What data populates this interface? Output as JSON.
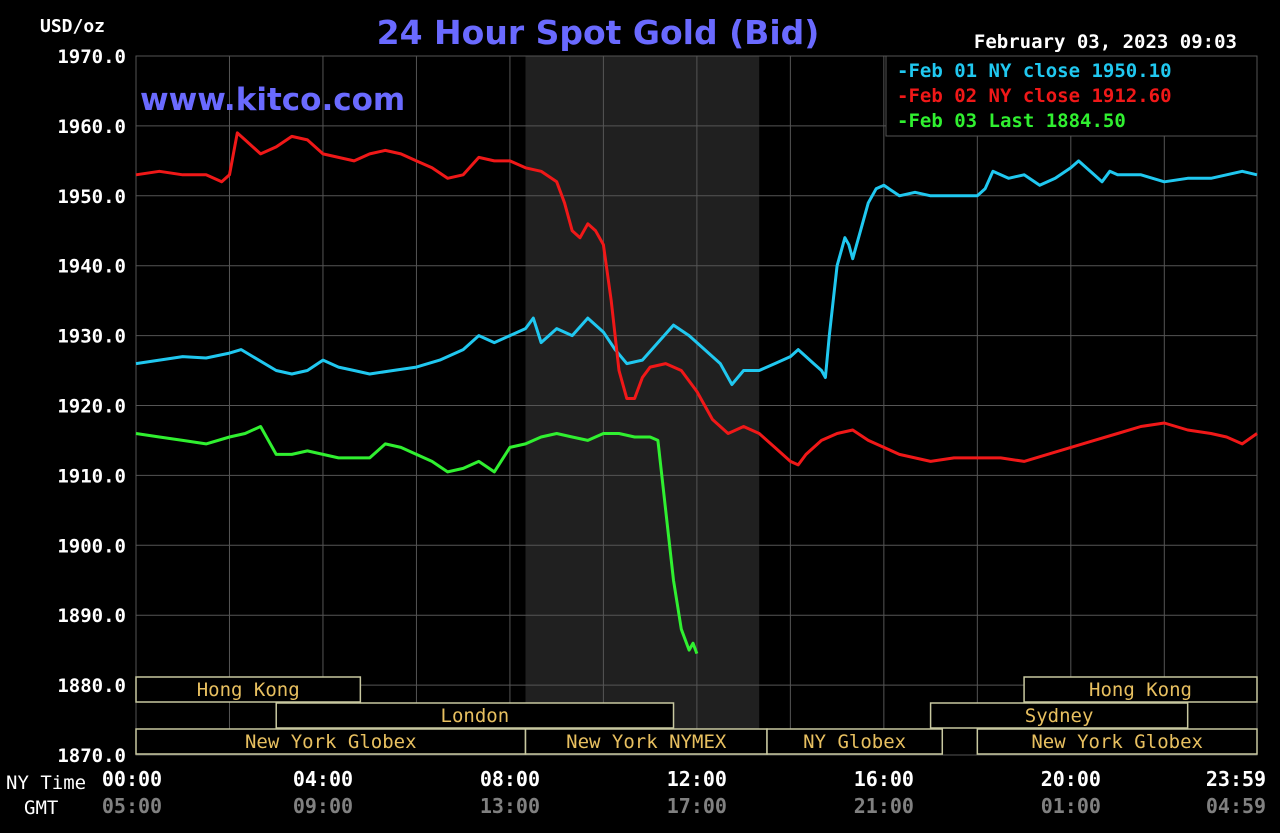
{
  "header": {
    "unit_label": "USD/oz",
    "title": "24 Hour Spot Gold (Bid)",
    "timestamp": "February 03, 2023 09:03",
    "watermark": "www.kitco.com"
  },
  "colors": {
    "background": "#000000",
    "grid": "#555555",
    "title": "#6a6aff",
    "watermark": "#6a6aff",
    "text": "#ffffff",
    "session_text": "#e8c060",
    "session_border": "#c8c8a0",
    "nymex_shade": "#202020",
    "series_feb01": "#20c8f0",
    "series_feb02": "#f01818",
    "series_feb03": "#30f030"
  },
  "axis_labels": {
    "ny_time": "NY Time",
    "gmt": "GMT"
  },
  "session_bars": [
    {
      "label": "Hong Kong",
      "row": 0,
      "start": "00:00",
      "end": "04:48"
    },
    {
      "label": "Hong Kong",
      "row": 0,
      "start": "19:00",
      "end": "23:59"
    },
    {
      "label": "London",
      "row": 1,
      "start": "03:00",
      "end": "11:30"
    },
    {
      "label": "Sydney",
      "row": 1,
      "start": "17:00",
      "end": "22:30"
    },
    {
      "label": "New York Globex",
      "row": 2,
      "start": "00:00",
      "end": "08:20"
    },
    {
      "label": "New York NYMEX",
      "row": 2,
      "start": "08:20",
      "end": "13:30"
    },
    {
      "label": "NY Globex",
      "row": 2,
      "start": "13:30",
      "end": "17:15"
    },
    {
      "label": "New York Globex",
      "row": 2,
      "start": "18:00",
      "end": "23:59"
    }
  ],
  "chart_data": {
    "type": "line",
    "title": "24 Hour Spot Gold (Bid)",
    "ylabel": "USD/oz",
    "ylim": [
      1870,
      1970
    ],
    "yticks": [
      "1970.0",
      "1960.0",
      "1950.0",
      "1940.0",
      "1930.0",
      "1920.0",
      "1910.0",
      "1900.0",
      "1890.0",
      "1880.0",
      "1870.0"
    ],
    "xlim": [
      "00:00",
      "23:59"
    ],
    "xticks_ny": [
      "00:00",
      "04:00",
      "08:00",
      "12:00",
      "16:00",
      "20:00",
      "23:59"
    ],
    "xticks_gmt": [
      "05:00",
      "09:00",
      "13:00",
      "17:00",
      "21:00",
      "01:00",
      "04:59"
    ],
    "shaded_region": {
      "start": "08:20",
      "end": "13:20"
    },
    "grid": true,
    "legend_position": "top-right",
    "series": [
      {
        "name": "Feb 01 NY close 1950.10",
        "color": "#20c8f0",
        "points": [
          [
            "00:00",
            1926
          ],
          [
            "00:30",
            1926.5
          ],
          [
            "01:00",
            1927
          ],
          [
            "01:30",
            1926.8
          ],
          [
            "02:00",
            1927.5
          ],
          [
            "02:15",
            1928
          ],
          [
            "02:30",
            1927
          ],
          [
            "03:00",
            1925
          ],
          [
            "03:20",
            1924.5
          ],
          [
            "03:40",
            1925
          ],
          [
            "04:00",
            1926.5
          ],
          [
            "04:20",
            1925.5
          ],
          [
            "04:40",
            1925
          ],
          [
            "05:00",
            1924.5
          ],
          [
            "05:30",
            1925
          ],
          [
            "06:00",
            1925.5
          ],
          [
            "06:30",
            1926.5
          ],
          [
            "07:00",
            1928
          ],
          [
            "07:20",
            1930
          ],
          [
            "07:40",
            1929
          ],
          [
            "08:00",
            1930
          ],
          [
            "08:20",
            1931
          ],
          [
            "08:30",
            1932.5
          ],
          [
            "08:40",
            1929
          ],
          [
            "09:00",
            1931
          ],
          [
            "09:20",
            1930
          ],
          [
            "09:40",
            1932.5
          ],
          [
            "10:00",
            1930.5
          ],
          [
            "10:15",
            1928
          ],
          [
            "10:30",
            1926
          ],
          [
            "10:50",
            1926.5
          ],
          [
            "11:10",
            1929
          ],
          [
            "11:30",
            1931.5
          ],
          [
            "11:50",
            1930
          ],
          [
            "12:10",
            1928
          ],
          [
            "12:30",
            1926
          ],
          [
            "12:45",
            1923
          ],
          [
            "13:00",
            1925
          ],
          [
            "13:20",
            1925
          ],
          [
            "13:40",
            1926
          ],
          [
            "14:00",
            1927
          ],
          [
            "14:10",
            1928
          ],
          [
            "14:20",
            1927
          ],
          [
            "14:30",
            1926
          ],
          [
            "14:40",
            1925
          ],
          [
            "14:45",
            1924
          ],
          [
            "14:50",
            1930
          ],
          [
            "15:00",
            1940
          ],
          [
            "15:10",
            1944
          ],
          [
            "15:15",
            1943
          ],
          [
            "15:20",
            1941
          ],
          [
            "15:30",
            1945
          ],
          [
            "15:40",
            1949
          ],
          [
            "15:50",
            1951
          ],
          [
            "16:00",
            1951.5
          ],
          [
            "16:20",
            1950
          ],
          [
            "16:40",
            1950.5
          ],
          [
            "17:00",
            1950
          ],
          [
            "18:00",
            1950
          ],
          [
            "18:10",
            1951
          ],
          [
            "18:20",
            1953.5
          ],
          [
            "18:40",
            1952.5
          ],
          [
            "19:00",
            1953
          ],
          [
            "19:20",
            1951.5
          ],
          [
            "19:40",
            1952.5
          ],
          [
            "20:00",
            1954
          ],
          [
            "20:10",
            1955
          ],
          [
            "20:30",
            1953
          ],
          [
            "20:40",
            1952
          ],
          [
            "20:50",
            1953.5
          ],
          [
            "21:00",
            1953
          ],
          [
            "21:30",
            1953
          ],
          [
            "22:00",
            1952
          ],
          [
            "22:30",
            1952.5
          ],
          [
            "23:00",
            1952.5
          ],
          [
            "23:20",
            1953
          ],
          [
            "23:40",
            1953.5
          ],
          [
            "23:59",
            1953
          ]
        ]
      },
      {
        "name": "Feb 02 NY close 1912.60",
        "color": "#f01818",
        "points": [
          [
            "00:00",
            1953
          ],
          [
            "00:30",
            1953.5
          ],
          [
            "01:00",
            1953
          ],
          [
            "01:30",
            1953
          ],
          [
            "01:50",
            1952
          ],
          [
            "02:00",
            1953
          ],
          [
            "02:10",
            1959
          ],
          [
            "02:20",
            1958
          ],
          [
            "02:40",
            1956
          ],
          [
            "03:00",
            1957
          ],
          [
            "03:20",
            1958.5
          ],
          [
            "03:40",
            1958
          ],
          [
            "04:00",
            1956
          ],
          [
            "04:20",
            1955.5
          ],
          [
            "04:40",
            1955
          ],
          [
            "05:00",
            1956
          ],
          [
            "05:20",
            1956.5
          ],
          [
            "05:40",
            1956
          ],
          [
            "06:00",
            1955
          ],
          [
            "06:20",
            1954
          ],
          [
            "06:40",
            1952.5
          ],
          [
            "07:00",
            1953
          ],
          [
            "07:20",
            1955.5
          ],
          [
            "07:40",
            1955
          ],
          [
            "08:00",
            1955
          ],
          [
            "08:20",
            1954
          ],
          [
            "08:40",
            1953.5
          ],
          [
            "09:00",
            1952
          ],
          [
            "09:10",
            1949
          ],
          [
            "09:20",
            1945
          ],
          [
            "09:30",
            1944
          ],
          [
            "09:40",
            1946
          ],
          [
            "09:50",
            1945
          ],
          [
            "10:00",
            1943
          ],
          [
            "10:10",
            1935
          ],
          [
            "10:20",
            1925
          ],
          [
            "10:30",
            1921
          ],
          [
            "10:40",
            1921
          ],
          [
            "10:50",
            1924
          ],
          [
            "11:00",
            1925.5
          ],
          [
            "11:20",
            1926
          ],
          [
            "11:40",
            1925
          ],
          [
            "12:00",
            1922
          ],
          [
            "12:20",
            1918
          ],
          [
            "12:40",
            1916
          ],
          [
            "13:00",
            1917
          ],
          [
            "13:20",
            1916
          ],
          [
            "13:40",
            1914
          ],
          [
            "14:00",
            1912
          ],
          [
            "14:10",
            1911.5
          ],
          [
            "14:20",
            1913
          ],
          [
            "14:40",
            1915
          ],
          [
            "15:00",
            1916
          ],
          [
            "15:20",
            1916.5
          ],
          [
            "15:40",
            1915
          ],
          [
            "16:00",
            1914
          ],
          [
            "16:20",
            1913
          ],
          [
            "16:40",
            1912.5
          ],
          [
            "17:00",
            1912
          ],
          [
            "17:30",
            1912.5
          ],
          [
            "18:00",
            1912.5
          ],
          [
            "18:30",
            1912.5
          ],
          [
            "19:00",
            1912
          ],
          [
            "19:30",
            1913
          ],
          [
            "20:00",
            1914
          ],
          [
            "20:30",
            1915
          ],
          [
            "21:00",
            1916
          ],
          [
            "21:30",
            1917
          ],
          [
            "22:00",
            1917.5
          ],
          [
            "22:30",
            1916.5
          ],
          [
            "23:00",
            1916
          ],
          [
            "23:20",
            1915.5
          ],
          [
            "23:40",
            1914.5
          ],
          [
            "23:59",
            1916
          ]
        ]
      },
      {
        "name": "Feb 03 Last 1884.50",
        "color": "#30f030",
        "points": [
          [
            "00:00",
            1916
          ],
          [
            "00:30",
            1915.5
          ],
          [
            "01:00",
            1915
          ],
          [
            "01:30",
            1914.5
          ],
          [
            "02:00",
            1915.5
          ],
          [
            "02:20",
            1916
          ],
          [
            "02:40",
            1917
          ],
          [
            "03:00",
            1913
          ],
          [
            "03:20",
            1913
          ],
          [
            "03:40",
            1913.5
          ],
          [
            "04:00",
            1913
          ],
          [
            "04:20",
            1912.5
          ],
          [
            "04:40",
            1912.5
          ],
          [
            "05:00",
            1912.5
          ],
          [
            "05:20",
            1914.5
          ],
          [
            "05:40",
            1914
          ],
          [
            "06:00",
            1913
          ],
          [
            "06:20",
            1912
          ],
          [
            "06:40",
            1910.5
          ],
          [
            "07:00",
            1911
          ],
          [
            "07:20",
            1912
          ],
          [
            "07:40",
            1910.5
          ],
          [
            "08:00",
            1914
          ],
          [
            "08:20",
            1914.5
          ],
          [
            "08:40",
            1915.5
          ],
          [
            "09:00",
            1916
          ],
          [
            "09:20",
            1915.5
          ],
          [
            "09:40",
            1915
          ],
          [
            "10:00",
            1916
          ],
          [
            "10:20",
            1916
          ],
          [
            "10:40",
            1915.5
          ],
          [
            "11:00",
            1915.5
          ],
          [
            "11:10",
            1915
          ],
          [
            "11:20",
            1905
          ],
          [
            "11:30",
            1895
          ],
          [
            "11:40",
            1888
          ],
          [
            "11:50",
            1885
          ],
          [
            "11:55",
            1886
          ],
          [
            "12:00",
            1884.5
          ]
        ]
      }
    ]
  }
}
